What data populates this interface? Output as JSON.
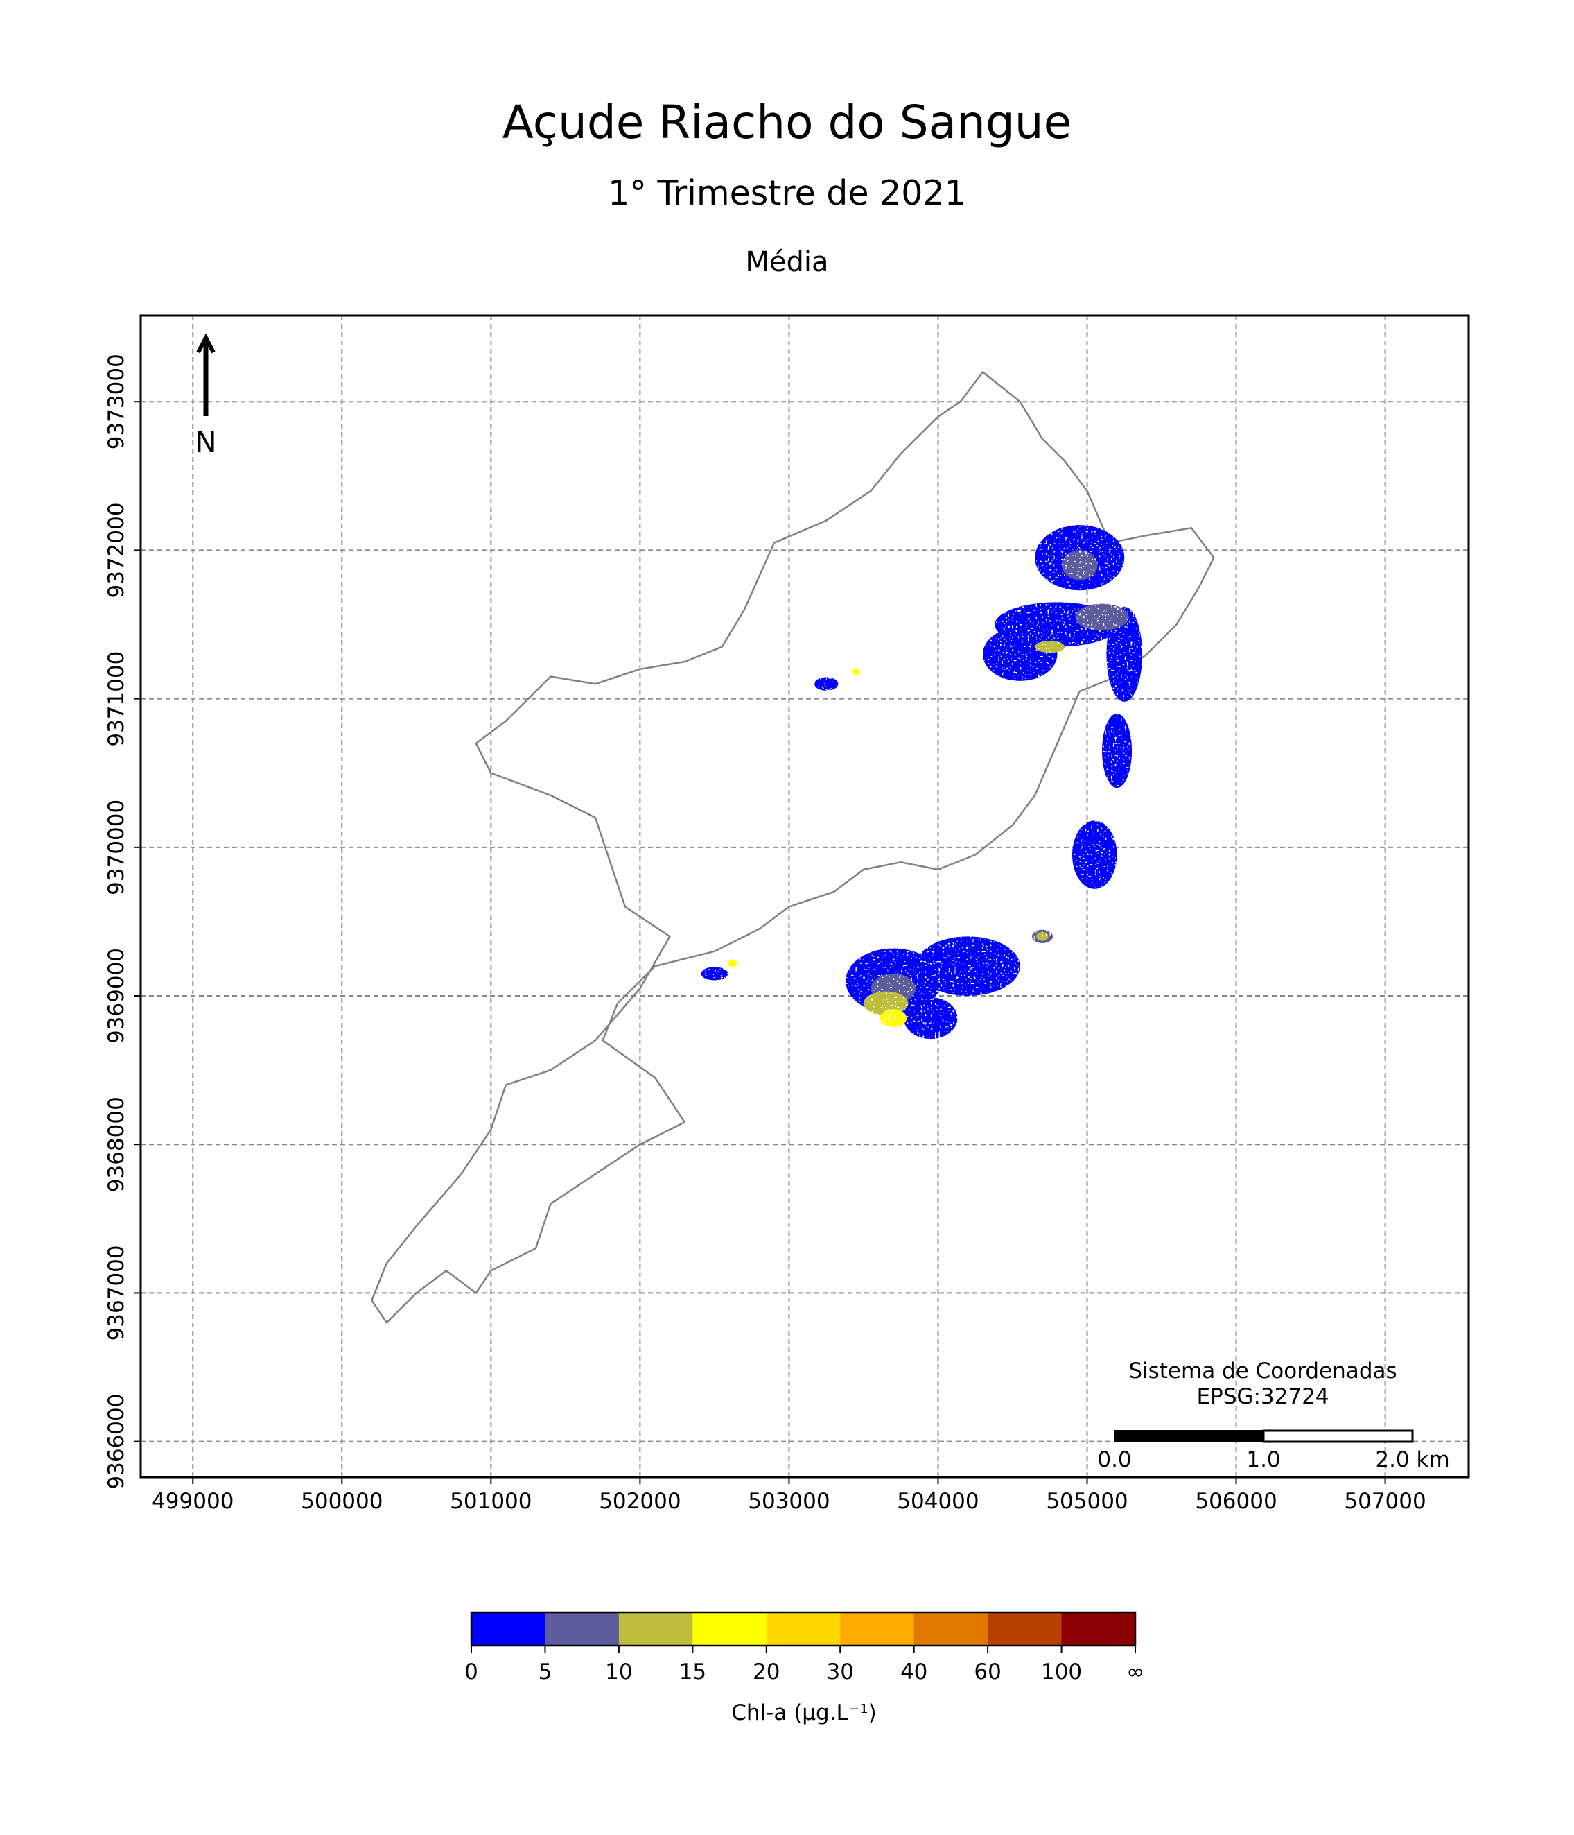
{
  "title": "Açude Riacho do Sangue",
  "subtitle": "1° Trimestre de 2021",
  "panel_title": "Média",
  "north_label": "N",
  "crs": {
    "line1": "Sistema de Coordenadas",
    "line2": "EPSG:32724"
  },
  "scale_bar": {
    "labels": [
      "0.0",
      "1.0",
      "2.0 km"
    ]
  },
  "axes": {
    "x_ticks": [
      "499000",
      "500000",
      "501000",
      "502000",
      "503000",
      "504000",
      "505000",
      "506000",
      "507000"
    ],
    "y_ticks": [
      "9366000",
      "9367000",
      "9368000",
      "9369000",
      "9370000",
      "9371000",
      "9372000",
      "9373000"
    ],
    "xlim": [
      498650,
      507560
    ],
    "ylim": [
      9365760,
      9373580
    ],
    "grid": true,
    "grid_style": "dashed"
  },
  "colorbar": {
    "label": "Chl-a (μg.L⁻¹)",
    "tick_labels": [
      "0",
      "5",
      "10",
      "15",
      "20",
      "30",
      "40",
      "60",
      "100",
      "∞"
    ],
    "colors": [
      "#0000ff",
      "#5c5c9c",
      "#bdbd3e",
      "#ffff00",
      "#ffd700",
      "#ffaa00",
      "#e07800",
      "#b84000",
      "#8b0000"
    ]
  },
  "chart_data": {
    "type": "heatmap",
    "title": "Açude Riacho do Sangue",
    "subtitle": "1° Trimestre de 2021",
    "variable": "Chl-a (μg.L⁻¹)",
    "xlim": [
      498650,
      507560
    ],
    "ylim": [
      9365760,
      9373580
    ],
    "bins": [
      "0-5",
      "5-10",
      "10-15",
      "15-20",
      "20-30",
      "30-40",
      "40-60",
      "60-100",
      "100-∞"
    ],
    "reservoir_outline": [
      [
        500300,
        9366800
      ],
      [
        500500,
        9367000
      ],
      [
        500700,
        9367150
      ],
      [
        500900,
        9367000
      ],
      [
        501000,
        9367150
      ],
      [
        501300,
        9367300
      ],
      [
        501400,
        9367600
      ],
      [
        501700,
        9367800
      ],
      [
        502000,
        9368000
      ],
      [
        502300,
        9368150
      ],
      [
        502100,
        9368450
      ],
      [
        501750,
        9368700
      ],
      [
        501850,
        9368950
      ],
      [
        502100,
        9369200
      ],
      [
        502500,
        9369300
      ],
      [
        502800,
        9369450
      ],
      [
        503000,
        9369600
      ],
      [
        503300,
        9369700
      ],
      [
        503500,
        9369850
      ],
      [
        503750,
        9369900
      ],
      [
        504000,
        9369850
      ],
      [
        504250,
        9369950
      ],
      [
        504500,
        9370150
      ],
      [
        504650,
        9370350
      ],
      [
        504800,
        9370700
      ],
      [
        504950,
        9371050
      ],
      [
        505200,
        9371150
      ],
      [
        505400,
        9371300
      ],
      [
        505600,
        9371500
      ],
      [
        505750,
        9371750
      ],
      [
        505850,
        9371950
      ],
      [
        505700,
        9372150
      ],
      [
        505400,
        9372100
      ],
      [
        505150,
        9372050
      ],
      [
        505000,
        9372400
      ],
      [
        504850,
        9372600
      ],
      [
        504700,
        9372750
      ],
      [
        504550,
        9373000
      ],
      [
        504300,
        9373200
      ],
      [
        504150,
        9373000
      ],
      [
        504000,
        9372900
      ],
      [
        503750,
        9372650
      ],
      [
        503550,
        9372400
      ],
      [
        503250,
        9372200
      ],
      [
        502900,
        9372050
      ],
      [
        502700,
        9371600
      ],
      [
        502550,
        9371350
      ],
      [
        502300,
        9371250
      ],
      [
        502000,
        9371200
      ],
      [
        501700,
        9371100
      ],
      [
        501400,
        9371150
      ],
      [
        501100,
        9370850
      ],
      [
        500900,
        9370700
      ],
      [
        501000,
        9370500
      ],
      [
        501400,
        9370350
      ],
      [
        501700,
        9370200
      ],
      [
        501800,
        9369900
      ],
      [
        501900,
        9369600
      ],
      [
        502200,
        9369400
      ],
      [
        502000,
        9369050
      ],
      [
        501700,
        9368700
      ],
      [
        501400,
        9368500
      ],
      [
        501100,
        9368400
      ],
      [
        501000,
        9368100
      ],
      [
        500800,
        9367800
      ],
      [
        500500,
        9367450
      ],
      [
        500300,
        9367200
      ],
      [
        500200,
        9366950
      ]
    ],
    "patches": [
      {
        "bin": "0-5",
        "cx": 504950,
        "cy": 9371950,
        "rx": 300,
        "ry": 220
      },
      {
        "bin": "0-5",
        "cx": 504800,
        "cy": 9371500,
        "rx": 420,
        "ry": 150
      },
      {
        "bin": "0-5",
        "cx": 505250,
        "cy": 9371300,
        "rx": 120,
        "ry": 320
      },
      {
        "bin": "0-5",
        "cx": 504550,
        "cy": 9371300,
        "rx": 250,
        "ry": 180
      },
      {
        "bin": "0-5",
        "cx": 505200,
        "cy": 9370650,
        "rx": 100,
        "ry": 250
      },
      {
        "bin": "0-5",
        "cx": 505050,
        "cy": 9369950,
        "rx": 150,
        "ry": 230
      },
      {
        "bin": "0-5",
        "cx": 504200,
        "cy": 9369200,
        "rx": 350,
        "ry": 200
      },
      {
        "bin": "0-5",
        "cx": 503700,
        "cy": 9369100,
        "rx": 320,
        "ry": 220
      },
      {
        "bin": "0-5",
        "cx": 503950,
        "cy": 9368850,
        "rx": 180,
        "ry": 140
      },
      {
        "bin": "0-5",
        "cx": 503250,
        "cy": 9371100,
        "rx": 80,
        "ry": 45
      },
      {
        "bin": "0-5",
        "cx": 502500,
        "cy": 9369150,
        "rx": 90,
        "ry": 45
      },
      {
        "bin": "5-10",
        "cx": 504950,
        "cy": 9371900,
        "rx": 120,
        "ry": 100
      },
      {
        "bin": "5-10",
        "cx": 505100,
        "cy": 9371550,
        "rx": 180,
        "ry": 90
      },
      {
        "bin": "5-10",
        "cx": 503700,
        "cy": 9369050,
        "rx": 150,
        "ry": 100
      },
      {
        "bin": "5-10",
        "cx": 504700,
        "cy": 9369400,
        "rx": 70,
        "ry": 45
      },
      {
        "bin": "10-15",
        "cx": 503650,
        "cy": 9368950,
        "rx": 150,
        "ry": 80
      },
      {
        "bin": "10-15",
        "cx": 504750,
        "cy": 9371350,
        "rx": 100,
        "ry": 40
      },
      {
        "bin": "10-15",
        "cx": 504700,
        "cy": 9369400,
        "rx": 40,
        "ry": 30
      },
      {
        "bin": "15-20",
        "cx": 503700,
        "cy": 9368850,
        "rx": 90,
        "ry": 60
      },
      {
        "bin": "15-20",
        "cx": 502620,
        "cy": 9369220,
        "rx": 30,
        "ry": 25
      },
      {
        "bin": "15-20",
        "cx": 503450,
        "cy": 9371180,
        "rx": 30,
        "ry": 20
      }
    ]
  }
}
